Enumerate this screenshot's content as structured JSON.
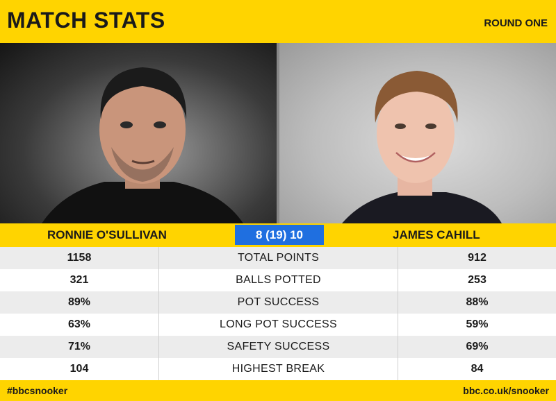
{
  "header": {
    "title": "MATCH STATS",
    "round": "ROUND ONE"
  },
  "players": {
    "left": {
      "name": "RONNIE O'SULLIVAN"
    },
    "right": {
      "name": "JAMES CAHILL"
    }
  },
  "score": "8  (19)  10",
  "stats": [
    {
      "label": "TOTAL POINTS",
      "left": "1158",
      "right": "912"
    },
    {
      "label": "BALLS POTTED",
      "left": "321",
      "right": "253"
    },
    {
      "label": "POT SUCCESS",
      "left": "89%",
      "right": "88%"
    },
    {
      "label": "LONG POT SUCCESS",
      "left": "63%",
      "right": "59%"
    },
    {
      "label": "SAFETY SUCCESS",
      "left": "71%",
      "right": "69%"
    },
    {
      "label": "HIGHEST BREAK",
      "left": "104",
      "right": "84"
    }
  ],
  "footer": {
    "hashtag": "#bbcsnooker",
    "site": "bbc.co.uk/snooker"
  },
  "colors": {
    "brand_yellow": "#ffd400",
    "score_blue": "#1f6fe0"
  }
}
